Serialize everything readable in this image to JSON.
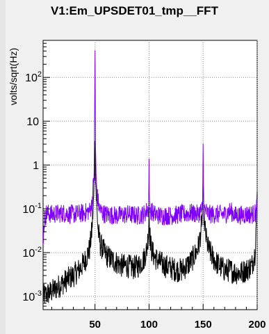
{
  "chart_data": {
    "type": "line",
    "title": "V1:Em_UPSDET01_tmp__FFT",
    "xlabel": "",
    "ylabel": "volts/sqrt(Hz)",
    "xlim": [
      2,
      200
    ],
    "ylim": [
      0.0005,
      700
    ],
    "yscale": "log",
    "grid": true,
    "x_ticks": [
      50,
      100,
      150,
      200
    ],
    "y_ticks": [
      {
        "value": 0.001,
        "mantissa": "10",
        "exp": "-3"
      },
      {
        "value": 0.01,
        "mantissa": "10",
        "exp": "-2"
      },
      {
        "value": 0.1,
        "mantissa": "10",
        "exp": "-1"
      },
      {
        "value": 1,
        "mantissa": "1",
        "exp": ""
      },
      {
        "value": 10,
        "mantissa": "10",
        "exp": ""
      },
      {
        "value": 100,
        "mantissa": "10",
        "exp": "2"
      }
    ],
    "series": [
      {
        "color": "#000000",
        "points": [
          [
            2,
            0.001
          ],
          [
            5,
            0.0011
          ],
          [
            10,
            0.0013
          ],
          [
            15,
            0.0016
          ],
          [
            20,
            0.002
          ],
          [
            25,
            0.0025
          ],
          [
            30,
            0.003
          ],
          [
            35,
            0.004
          ],
          [
            40,
            0.006
          ],
          [
            45,
            0.012
          ],
          [
            47,
            0.03
          ],
          [
            48.5,
            0.12
          ],
          [
            49.5,
            0.6
          ],
          [
            50,
            2.5
          ],
          [
            50.5,
            0.6
          ],
          [
            51.5,
            0.12
          ],
          [
            53,
            0.03
          ],
          [
            55,
            0.015
          ],
          [
            60,
            0.009
          ],
          [
            65,
            0.007
          ],
          [
            70,
            0.006
          ],
          [
            75,
            0.005
          ],
          [
            80,
            0.005
          ],
          [
            85,
            0.0045
          ],
          [
            90,
            0.005
          ],
          [
            95,
            0.007
          ],
          [
            98,
            0.012
          ],
          [
            99.5,
            0.03
          ],
          [
            100,
            0.12
          ],
          [
            100.5,
            0.03
          ],
          [
            102,
            0.012
          ],
          [
            105,
            0.008
          ],
          [
            110,
            0.006
          ],
          [
            115,
            0.005
          ],
          [
            120,
            0.0045
          ],
          [
            125,
            0.004
          ],
          [
            130,
            0.004
          ],
          [
            135,
            0.005
          ],
          [
            140,
            0.007
          ],
          [
            145,
            0.012
          ],
          [
            147,
            0.02
          ],
          [
            148.5,
            0.04
          ],
          [
            149.5,
            0.1
          ],
          [
            150,
            0.3
          ],
          [
            150.5,
            0.1
          ],
          [
            151.5,
            0.04
          ],
          [
            153,
            0.02
          ],
          [
            155,
            0.012
          ],
          [
            160,
            0.007
          ],
          [
            165,
            0.005
          ],
          [
            170,
            0.004
          ],
          [
            175,
            0.004
          ],
          [
            180,
            0.0035
          ],
          [
            185,
            0.0035
          ],
          [
            190,
            0.004
          ],
          [
            195,
            0.005
          ],
          [
            198,
            0.01
          ],
          [
            199.5,
            0.1
          ],
          [
            200,
            0.2
          ]
        ]
      },
      {
        "color": "#8000ff",
        "points": [
          [
            2,
            0.02
          ],
          [
            3,
            0.05
          ],
          [
            5,
            0.08
          ],
          [
            10,
            0.075
          ],
          [
            20,
            0.08
          ],
          [
            30,
            0.075
          ],
          [
            40,
            0.08
          ],
          [
            45,
            0.09
          ],
          [
            47,
            0.12
          ],
          [
            48,
            0.25
          ],
          [
            49,
            0.5
          ],
          [
            49.5,
            3
          ],
          [
            50,
            400
          ],
          [
            50.5,
            3
          ],
          [
            51,
            0.5
          ],
          [
            52,
            0.2
          ],
          [
            54,
            0.1
          ],
          [
            57,
            0.08
          ],
          [
            60,
            0.075
          ],
          [
            70,
            0.07
          ],
          [
            80,
            0.075
          ],
          [
            90,
            0.07
          ],
          [
            95,
            0.075
          ],
          [
            99.5,
            0.1
          ],
          [
            100,
            1.2
          ],
          [
            100.5,
            0.1
          ],
          [
            105,
            0.075
          ],
          [
            110,
            0.07
          ],
          [
            120,
            0.07
          ],
          [
            130,
            0.075
          ],
          [
            140,
            0.08
          ],
          [
            145,
            0.075
          ],
          [
            149.5,
            0.1
          ],
          [
            150,
            3
          ],
          [
            150.5,
            0.1
          ],
          [
            155,
            0.075
          ],
          [
            160,
            0.075
          ],
          [
            170,
            0.075
          ],
          [
            175,
            0.09
          ],
          [
            180,
            0.07
          ],
          [
            190,
            0.075
          ],
          [
            195,
            0.075
          ],
          [
            199,
            0.08
          ],
          [
            200,
            0.15
          ]
        ]
      }
    ]
  }
}
